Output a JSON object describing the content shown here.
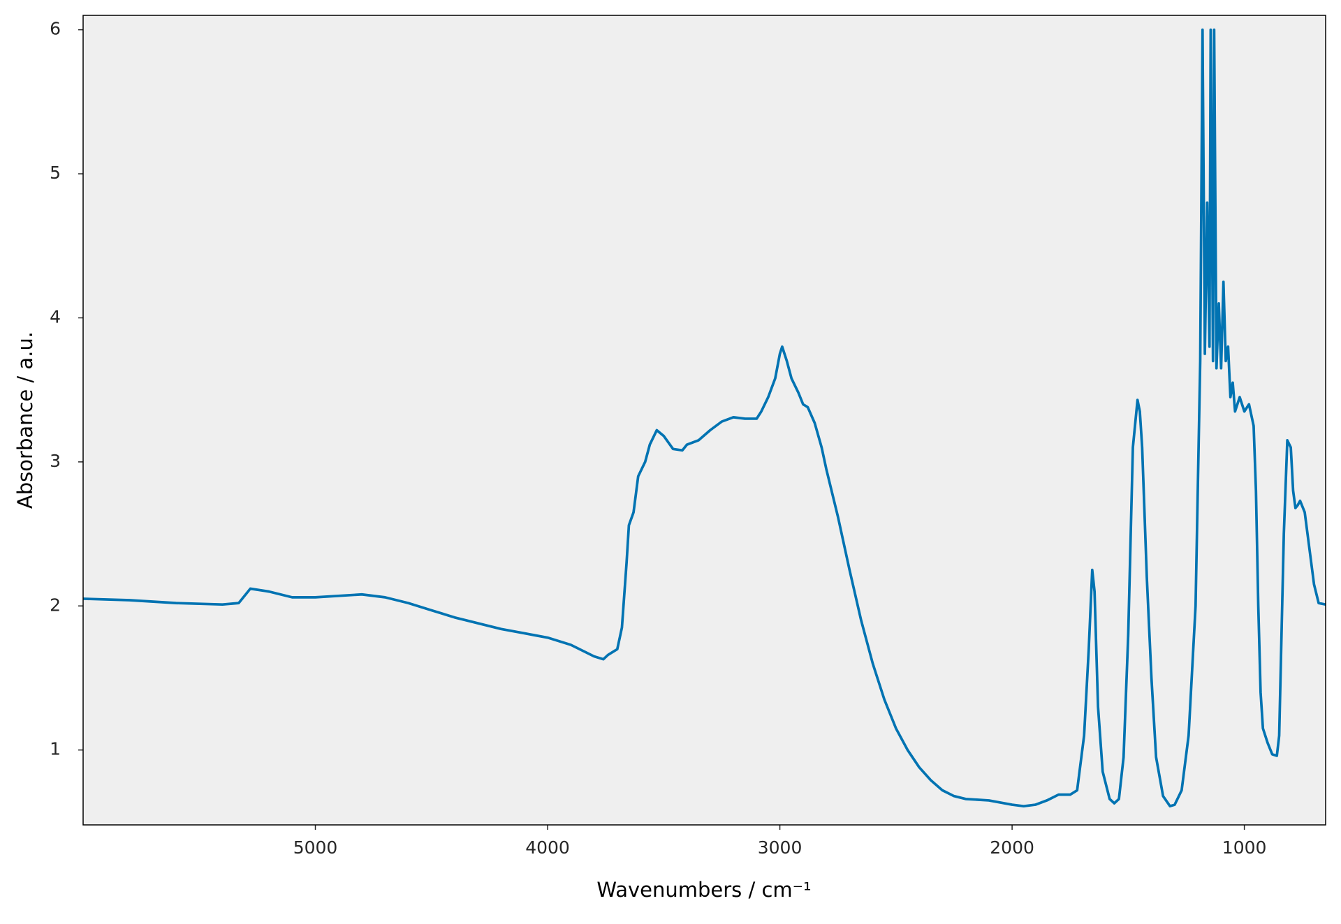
{
  "chart_data": {
    "type": "line",
    "xlabel": "Wavenumbers / cm⁻¹",
    "ylabel": "Absorbance / a.u.",
    "x": [
      6000,
      5800,
      5600,
      5400,
      5330,
      5280,
      5200,
      5100,
      5000,
      4900,
      4800,
      4700,
      4600,
      4500,
      4400,
      4300,
      4200,
      4100,
      4000,
      3900,
      3800,
      3760,
      3740,
      3700,
      3680,
      3660,
      3650,
      3630,
      3610,
      3580,
      3560,
      3530,
      3500,
      3460,
      3420,
      3400,
      3350,
      3300,
      3250,
      3200,
      3150,
      3100,
      3080,
      3050,
      3020,
      3000,
      2990,
      2970,
      2950,
      2920,
      2900,
      2880,
      2850,
      2820,
      2800,
      2750,
      2700,
      2650,
      2600,
      2550,
      2500,
      2450,
      2400,
      2350,
      2300,
      2250,
      2200,
      2100,
      2000,
      1950,
      1900,
      1850,
      1800,
      1750,
      1720,
      1690,
      1670,
      1655,
      1645,
      1630,
      1610,
      1580,
      1560,
      1540,
      1520,
      1500,
      1480,
      1460,
      1450,
      1440,
      1420,
      1400,
      1380,
      1350,
      1320,
      1300,
      1270,
      1240,
      1210,
      1190,
      1180,
      1170,
      1160,
      1150,
      1145,
      1135,
      1130,
      1120,
      1110,
      1100,
      1090,
      1080,
      1070,
      1060,
      1050,
      1040,
      1020,
      1000,
      980,
      960,
      950,
      940,
      930,
      920,
      900,
      880,
      860,
      850,
      830,
      815,
      800,
      790,
      780,
      770,
      760,
      740,
      720,
      700,
      680,
      650
    ],
    "values": [
      2.05,
      2.04,
      2.02,
      2.01,
      2.02,
      2.12,
      2.1,
      2.06,
      2.06,
      2.07,
      2.08,
      2.06,
      2.02,
      1.97,
      1.92,
      1.88,
      1.84,
      1.81,
      1.78,
      1.73,
      1.65,
      1.63,
      1.66,
      1.7,
      1.85,
      2.3,
      2.56,
      2.65,
      2.9,
      3.0,
      3.12,
      3.22,
      3.18,
      3.09,
      3.08,
      3.12,
      3.15,
      3.22,
      3.28,
      3.31,
      3.3,
      3.3,
      3.35,
      3.45,
      3.58,
      3.75,
      3.8,
      3.7,
      3.58,
      3.48,
      3.4,
      3.38,
      3.27,
      3.1,
      2.95,
      2.62,
      2.25,
      1.9,
      1.6,
      1.35,
      1.15,
      1.0,
      0.88,
      0.79,
      0.72,
      0.68,
      0.66,
      0.65,
      0.62,
      0.61,
      0.62,
      0.65,
      0.69,
      0.69,
      0.72,
      1.1,
      1.7,
      2.25,
      2.1,
      1.3,
      0.85,
      0.66,
      0.63,
      0.66,
      0.95,
      1.8,
      3.1,
      3.43,
      3.35,
      3.1,
      2.2,
      1.5,
      0.95,
      0.68,
      0.61,
      0.62,
      0.72,
      1.1,
      2.0,
      3.7,
      6.0,
      3.75,
      4.8,
      3.8,
      6.0,
      3.7,
      6.0,
      3.65,
      4.1,
      3.65,
      4.25,
      3.7,
      3.8,
      3.45,
      3.55,
      3.35,
      3.45,
      3.35,
      3.4,
      3.25,
      2.8,
      2.0,
      1.4,
      1.15,
      1.05,
      0.97,
      0.96,
      1.1,
      2.5,
      3.15,
      3.1,
      2.8,
      2.68,
      2.7,
      2.73,
      2.65,
      2.4,
      2.15,
      2.02,
      2.01
    ],
    "color": "#0173b2",
    "background": "#efefef",
    "xlim": [
      6000,
      650
    ],
    "xticks": [
      5000,
      4000,
      3000,
      2000,
      1000
    ],
    "ylim": [
      0.48,
      6.1
    ],
    "yticks": [
      1,
      2,
      3,
      4,
      5,
      6
    ],
    "grid": false
  }
}
